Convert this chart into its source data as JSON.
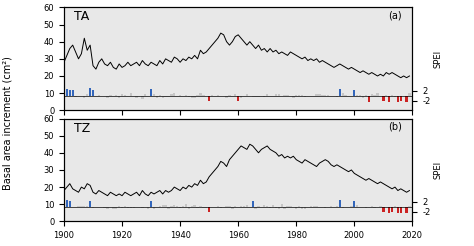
{
  "years": [
    1900,
    1901,
    1902,
    1903,
    1904,
    1905,
    1906,
    1907,
    1908,
    1909,
    1910,
    1911,
    1912,
    1913,
    1914,
    1915,
    1916,
    1917,
    1918,
    1919,
    1920,
    1921,
    1922,
    1923,
    1924,
    1925,
    1926,
    1927,
    1928,
    1929,
    1930,
    1931,
    1932,
    1933,
    1934,
    1935,
    1936,
    1937,
    1938,
    1939,
    1940,
    1941,
    1942,
    1943,
    1944,
    1945,
    1946,
    1947,
    1948,
    1949,
    1950,
    1951,
    1952,
    1953,
    1954,
    1955,
    1956,
    1957,
    1958,
    1959,
    1960,
    1961,
    1962,
    1963,
    1964,
    1965,
    1966,
    1967,
    1968,
    1969,
    1970,
    1971,
    1972,
    1973,
    1974,
    1975,
    1976,
    1977,
    1978,
    1979,
    1980,
    1981,
    1982,
    1983,
    1984,
    1985,
    1986,
    1987,
    1988,
    1989,
    1990,
    1991,
    1992,
    1993,
    1994,
    1995,
    1996,
    1997,
    1998,
    1999,
    2000,
    2001,
    2002,
    2003,
    2004,
    2005,
    2006,
    2007,
    2008,
    2009,
    2010,
    2011,
    2012,
    2013,
    2014,
    2015,
    2016,
    2017,
    2018,
    2019
  ],
  "ta_bai": [
    28,
    32,
    36,
    38,
    34,
    30,
    33,
    42,
    35,
    38,
    26,
    24,
    28,
    30,
    27,
    26,
    28,
    25,
    24,
    27,
    25,
    26,
    28,
    26,
    27,
    28,
    26,
    29,
    27,
    26,
    28,
    27,
    26,
    29,
    27,
    30,
    29,
    28,
    31,
    30,
    28,
    30,
    29,
    31,
    30,
    32,
    30,
    35,
    33,
    34,
    36,
    38,
    40,
    42,
    45,
    44,
    40,
    38,
    40,
    43,
    44,
    42,
    40,
    38,
    40,
    38,
    36,
    38,
    35,
    36,
    34,
    36,
    34,
    35,
    33,
    34,
    33,
    32,
    34,
    33,
    32,
    31,
    30,
    31,
    29,
    30,
    29,
    30,
    28,
    29,
    28,
    27,
    26,
    25,
    26,
    27,
    26,
    25,
    24,
    25,
    24,
    23,
    22,
    23,
    22,
    21,
    22,
    21,
    20,
    21,
    20,
    22,
    21,
    22,
    21,
    20,
    19,
    20,
    19,
    20
  ],
  "tz_bai": [
    18,
    20,
    22,
    19,
    18,
    17,
    20,
    19,
    22,
    21,
    17,
    16,
    18,
    17,
    16,
    15,
    17,
    16,
    15,
    16,
    15,
    17,
    16,
    15,
    16,
    17,
    15,
    18,
    16,
    15,
    17,
    16,
    17,
    18,
    16,
    18,
    17,
    18,
    20,
    19,
    18,
    20,
    19,
    21,
    20,
    22,
    21,
    24,
    22,
    23,
    26,
    28,
    30,
    32,
    35,
    34,
    32,
    36,
    38,
    40,
    42,
    44,
    43,
    42,
    45,
    44,
    42,
    40,
    42,
    43,
    44,
    42,
    41,
    40,
    38,
    39,
    37,
    38,
    37,
    38,
    36,
    35,
    34,
    36,
    35,
    34,
    33,
    32,
    34,
    35,
    36,
    35,
    33,
    32,
    33,
    32,
    31,
    30,
    29,
    30,
    28,
    27,
    26,
    25,
    24,
    25,
    24,
    23,
    22,
    23,
    22,
    21,
    20,
    19,
    20,
    18,
    19,
    18,
    17,
    18
  ],
  "ylabel": "Basal area increment (cm²)",
  "ylabel2": "SPEI",
  "xlim": [
    1900,
    2020
  ],
  "ylim_bai": [
    0,
    60
  ],
  "ylim_spei_display": [
    -3.0,
    3.0
  ],
  "yticks_bai": [
    0,
    10,
    20,
    30,
    40,
    50,
    60
  ],
  "spei_baseline": 8.5,
  "spei_scale": 1.5,
  "spei_threshold": 2.0,
  "label_a": "(a)",
  "label_b": "(b)",
  "label_ta": "TA",
  "label_tz": "TZ",
  "line_color": "#000000",
  "blue_color": "#3366bb",
  "red_color": "#cc2222",
  "gray_color": "#b0b0b0",
  "bg_color": "#e8e8e8",
  "ta_spei_extreme_pos": {
    "1901": 2.5,
    "1902": 2.3,
    "1903": 2.1,
    "1909": 2.8,
    "1910": 2.4,
    "1930": 2.6,
    "1995": 2.5,
    "2000": 2.3
  },
  "ta_spei_extreme_neg": {
    "1950": -2.2,
    "1960": -2.0,
    "2005": -2.3,
    "2010": -2.1,
    "2012": -2.4,
    "2015": -2.5,
    "2016": -2.2,
    "2018": -2.3
  },
  "tz_spei_extreme_pos": {
    "1901": 2.5,
    "1902": 2.2,
    "1909": 2.3,
    "1930": 2.4,
    "1965": 2.3,
    "1995": 2.6,
    "2000": 2.4
  },
  "tz_spei_extreme_neg": {
    "1950": -2.1,
    "2010": -2.2,
    "2012": -2.3,
    "2013": -2.1,
    "2015": -2.4,
    "2016": -2.3,
    "2018": -2.5
  }
}
